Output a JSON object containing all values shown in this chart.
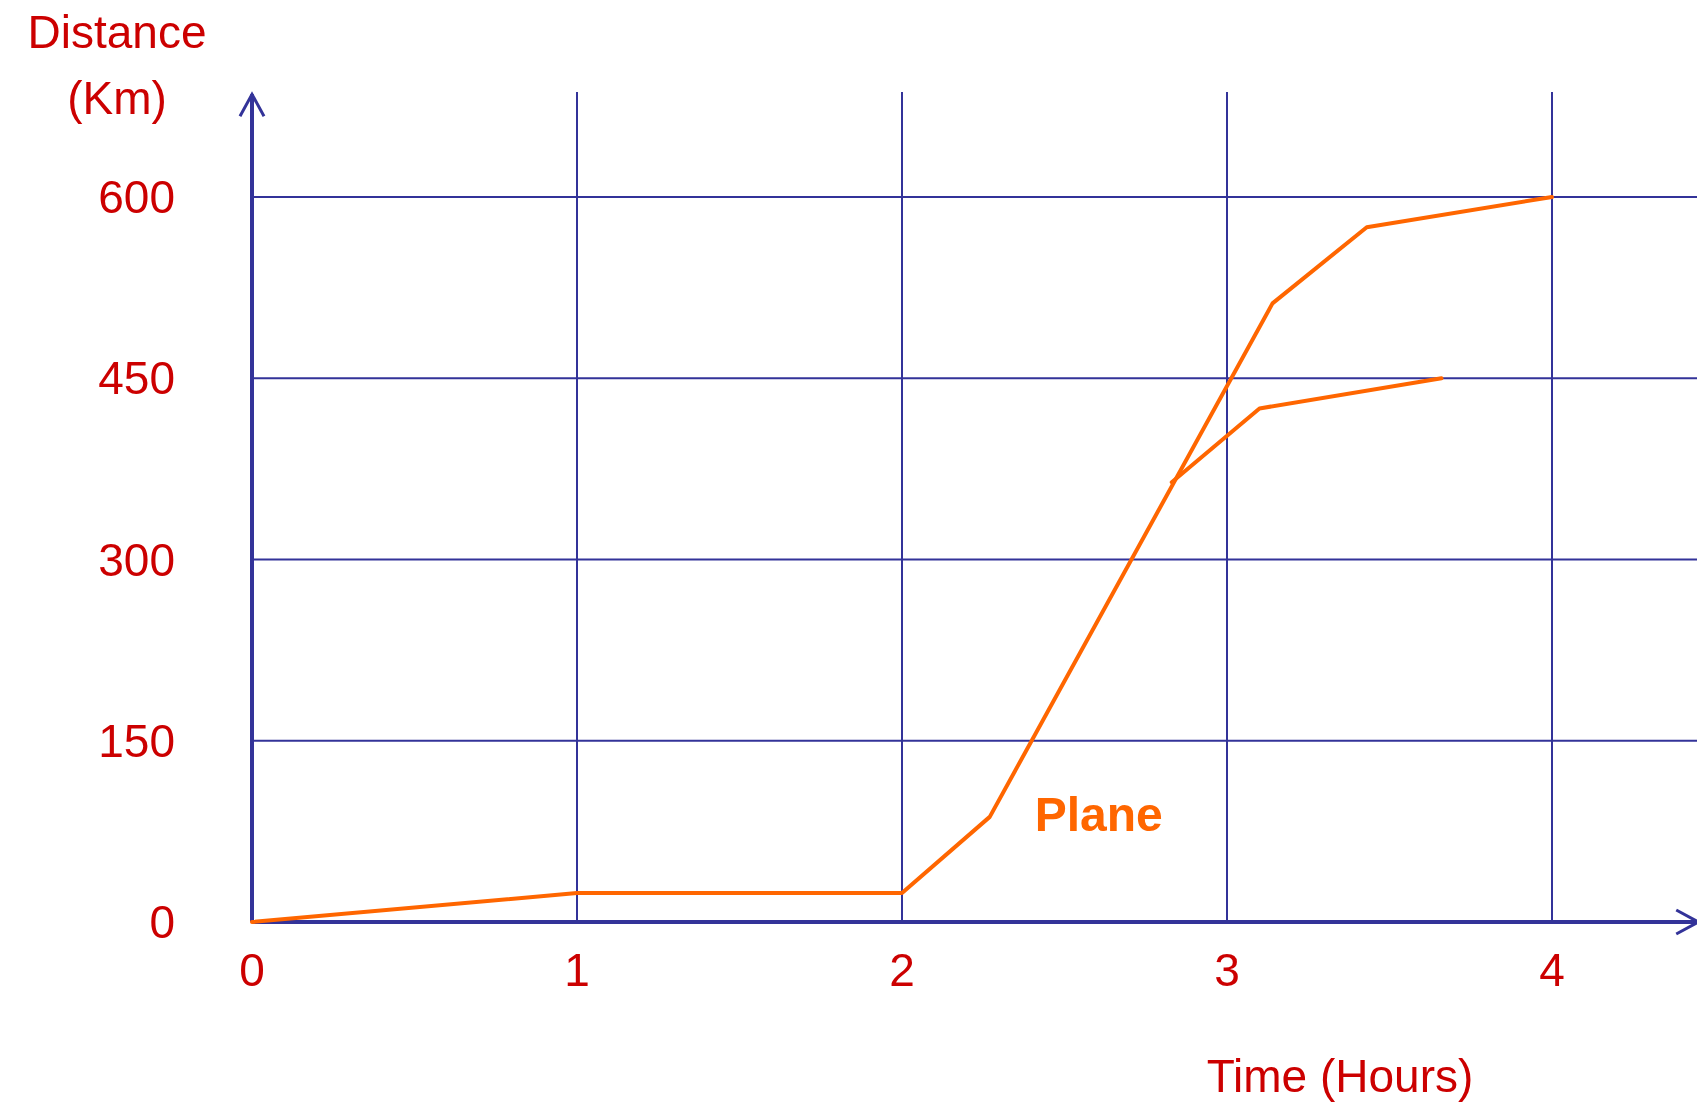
{
  "chart_data": {
    "type": "line",
    "xlabel": "Time (Hours)",
    "ylabel": "Distance (Km)",
    "xlim": [
      0,
      4.45
    ],
    "ylim": [
      0,
      685
    ],
    "xticks": [
      0,
      1,
      2,
      3,
      4
    ],
    "yticks": [
      0,
      150,
      300,
      450,
      600
    ],
    "grid": true,
    "legend": false,
    "marker": "none",
    "line_style": "solid",
    "series": [
      {
        "name": "Plane",
        "color": "#ff6600",
        "x": [
          0,
          1,
          2,
          2.27,
          3.14,
          3.43,
          4
        ],
        "values": [
          0,
          24,
          24,
          87,
          512,
          575,
          600
        ]
      },
      {
        "color": "#ff6600",
        "x": [
          2.83,
          3.1,
          3.66
        ],
        "values": [
          364,
          425,
          450
        ]
      }
    ]
  }
}
